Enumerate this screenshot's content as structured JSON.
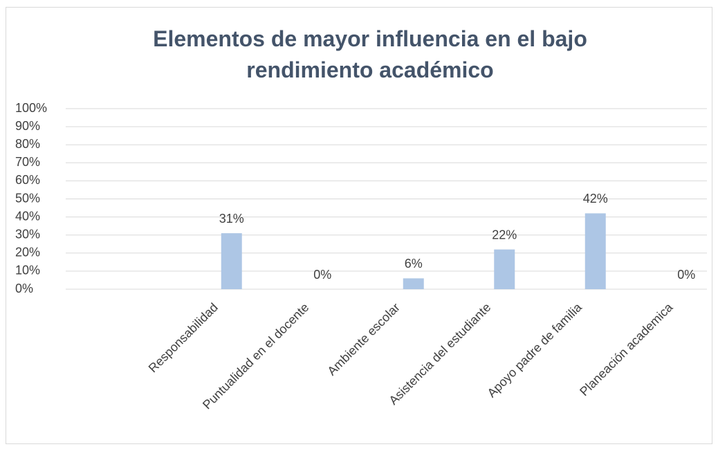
{
  "chart_data": {
    "type": "bar",
    "title": "Elementos de mayor influencia en el bajo rendimiento académico",
    "categories": [
      "Responsabilidad",
      "Puntualidad en el docente",
      "Ambiente escolar",
      "Asistencia del estudiante",
      "Apoyo padre de familia",
      "Planeación academica"
    ],
    "values": [
      31,
      0,
      6,
      22,
      42,
      0
    ],
    "value_labels": [
      "31%",
      "0%",
      "6%",
      "22%",
      "42%",
      "0%"
    ],
    "color": "#adc6e5",
    "ylim": [
      0,
      100
    ],
    "yticks": [
      {
        "value": 0,
        "label": "0%"
      },
      {
        "value": 10,
        "label": "10%"
      },
      {
        "value": 20,
        "label": "20%"
      },
      {
        "value": 30,
        "label": "30%"
      },
      {
        "value": 40,
        "label": "40%"
      },
      {
        "value": 50,
        "label": "50%"
      },
      {
        "value": 60,
        "label": "60%"
      },
      {
        "value": 70,
        "label": "70%"
      },
      {
        "value": 80,
        "label": "80%"
      },
      {
        "value": 90,
        "label": "90%"
      },
      {
        "value": 100,
        "label": "100%"
      }
    ],
    "grid": true
  }
}
